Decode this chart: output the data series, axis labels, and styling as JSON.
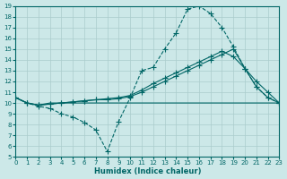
{
  "bg_color": "#cce8e8",
  "grid_color": "#aacccc",
  "line_color": "#006666",
  "xlabel": "Humidex (Indice chaleur)",
  "xlim": [
    0,
    23
  ],
  "ylim": [
    5,
    19
  ],
  "xticks": [
    0,
    1,
    2,
    3,
    4,
    5,
    6,
    7,
    8,
    9,
    10,
    11,
    12,
    13,
    14,
    15,
    16,
    17,
    18,
    19,
    20,
    21,
    22,
    23
  ],
  "yticks": [
    5,
    6,
    7,
    8,
    9,
    10,
    11,
    12,
    13,
    14,
    15,
    16,
    17,
    18,
    19
  ],
  "line1_x": [
    0,
    1,
    2,
    3,
    4,
    5,
    6,
    7,
    8,
    9,
    10,
    11,
    12,
    13,
    14,
    15,
    16,
    17,
    18,
    19,
    20,
    21,
    22,
    23
  ],
  "line1_y": [
    10.5,
    10.0,
    9.7,
    9.5,
    9.0,
    8.7,
    8.2,
    7.5,
    5.5,
    8.3,
    10.5,
    13.0,
    13.3,
    15.0,
    16.5,
    18.7,
    19.0,
    18.3,
    17.0,
    15.2,
    13.2,
    11.5,
    10.5,
    10.0
  ],
  "line2_x": [
    0,
    1,
    2,
    3,
    23
  ],
  "line2_y": [
    10.5,
    10.0,
    9.8,
    10.0,
    10.0
  ],
  "line3_x": [
    0,
    1,
    2,
    3,
    4,
    5,
    6,
    7,
    8,
    9,
    10,
    11,
    12,
    13,
    14,
    15,
    16,
    17,
    18,
    19,
    20,
    21,
    22,
    23
  ],
  "line3_y": [
    10.5,
    10.0,
    9.8,
    9.9,
    10.0,
    10.1,
    10.2,
    10.3,
    10.3,
    10.4,
    10.6,
    11.0,
    11.5,
    12.0,
    12.5,
    13.0,
    13.5,
    14.0,
    14.5,
    15.0,
    13.2,
    11.5,
    10.5,
    10.0
  ],
  "line4_x": [
    0,
    1,
    2,
    3,
    4,
    5,
    6,
    7,
    8,
    9,
    10,
    11,
    12,
    13,
    14,
    15,
    16,
    17,
    18,
    19,
    20,
    21,
    22,
    23
  ],
  "line4_y": [
    10.5,
    10.0,
    9.8,
    9.9,
    10.0,
    10.1,
    10.2,
    10.3,
    10.4,
    10.5,
    10.7,
    11.2,
    11.8,
    12.3,
    12.8,
    13.3,
    13.8,
    14.3,
    14.8,
    14.3,
    13.2,
    12.0,
    11.0,
    10.0
  ]
}
